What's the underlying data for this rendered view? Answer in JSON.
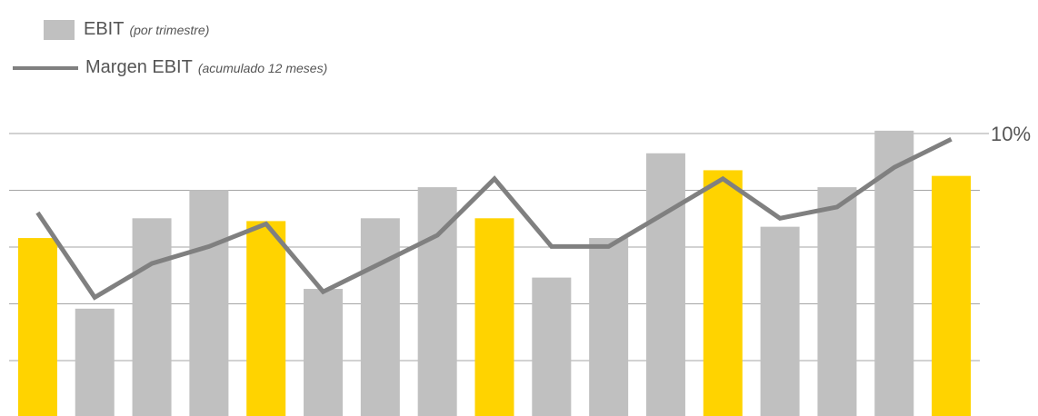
{
  "legend": {
    "bar": {
      "name": "EBIT",
      "note": "(por trimestre)"
    },
    "line": {
      "name": "Margen EBIT",
      "note": "(acumulado 12 meses)"
    }
  },
  "colors": {
    "bar_default": "#c0c0c0",
    "bar_highlight": "#ffd300",
    "line": "#808080",
    "grid": "#a6a6a6",
    "text": "#555555"
  },
  "chart_data": {
    "type": "bar",
    "grid": true,
    "bar_scale": {
      "min": 0,
      "max": 100
    },
    "line_axis": {
      "ticks": [
        {
          "value": 10,
          "label": "10%"
        }
      ],
      "ylim": [
        5,
        10
      ]
    },
    "series": [
      {
        "name": "EBIT (por trimestre)",
        "type": "bar",
        "values": [
          63,
          38,
          70,
          80,
          69,
          45,
          70,
          81,
          70,
          49,
          63,
          93,
          87,
          67,
          81,
          101,
          85
        ],
        "highlight": [
          true,
          false,
          false,
          false,
          true,
          false,
          false,
          false,
          true,
          false,
          false,
          false,
          true,
          false,
          false,
          false,
          true
        ]
      },
      {
        "name": "Margen EBIT (acumulado 12 meses)",
        "type": "line",
        "values": [
          8.6,
          7.1,
          7.7,
          8.0,
          8.4,
          7.2,
          7.7,
          8.2,
          9.2,
          8.0,
          8.0,
          8.6,
          9.2,
          8.5,
          8.7,
          9.4,
          9.9
        ]
      }
    ]
  }
}
